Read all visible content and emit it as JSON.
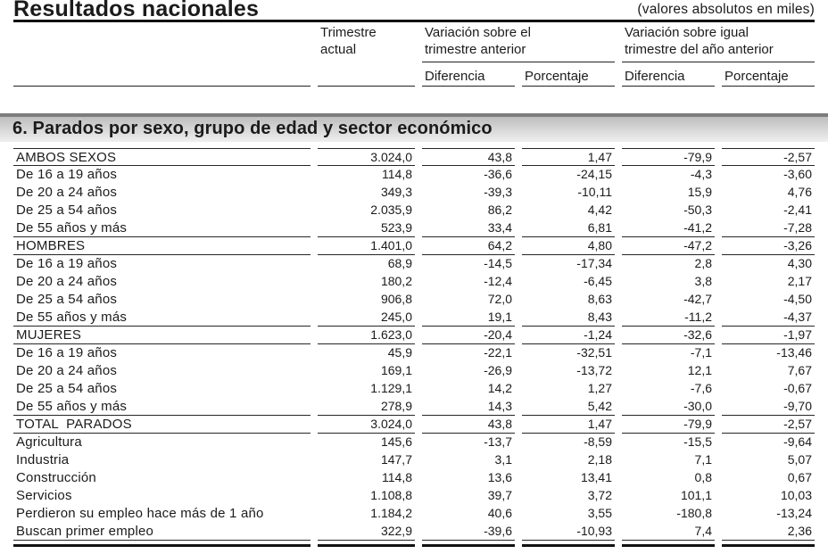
{
  "header": {
    "title": "Resultados nacionales",
    "units_note": "(valores absolutos en miles)"
  },
  "columns": {
    "current_quarter": {
      "line1": "Trimestre",
      "line2": "actual"
    },
    "vs_previous_quarter": {
      "line1": "Variación sobre el",
      "line2": "trimestre anterior",
      "difference": "Diferencia",
      "percentage": "Porcentaje"
    },
    "vs_year_ago_quarter": {
      "line1": "Variación sobre igual",
      "line2": "trimestre del año anterior",
      "difference": "Diferencia",
      "percentage": "Porcentaje"
    }
  },
  "section": {
    "title": "6. Parados por sexo, grupo de edad y sector económico"
  },
  "table": {
    "value_columns": [
      "Trimestre actual",
      "Diferencia trimestre anterior",
      "Porcentaje trimestre anterior",
      "Diferencia año anterior",
      "Porcentaje año anterior"
    ],
    "rows": [
      {
        "label": "AMBOS SEXOS",
        "values": [
          "3.024,0",
          "43,8",
          "1,47",
          "-79,9",
          "-2,57"
        ],
        "rule_below": true
      },
      {
        "label": "De 16 a 19 años",
        "values": [
          "114,8",
          "-36,6",
          "-24,15",
          "-4,3",
          "-3,60"
        ],
        "rule_below": false
      },
      {
        "label": "De 20 a 24 años",
        "values": [
          "349,3",
          "-39,3",
          "-10,11",
          "15,9",
          "4,76"
        ],
        "rule_below": false
      },
      {
        "label": "De 25 a 54 años",
        "values": [
          "2.035,9",
          "86,2",
          "4,42",
          "-50,3",
          "-2,41"
        ],
        "rule_below": false
      },
      {
        "label": "De 55 años y más",
        "values": [
          "523,9",
          "33,4",
          "6,81",
          "-41,2",
          "-7,28"
        ],
        "rule_below": true
      },
      {
        "label": "HOMBRES",
        "values": [
          "1.401,0",
          "64,2",
          "4,80",
          "-47,2",
          "-3,26"
        ],
        "rule_below": true
      },
      {
        "label": "De 16 a 19 años",
        "values": [
          "68,9",
          "-14,5",
          "-17,34",
          "2,8",
          "4,30"
        ],
        "rule_below": false
      },
      {
        "label": "De 20 a 24 años",
        "values": [
          "180,2",
          "-12,4",
          "-6,45",
          "3,8",
          "2,17"
        ],
        "rule_below": false
      },
      {
        "label": "De 25 a 54 años",
        "values": [
          "906,8",
          "72,0",
          "8,63",
          "-42,7",
          "-4,50"
        ],
        "rule_below": false
      },
      {
        "label": "De 55 años y más",
        "values": [
          "245,0",
          "19,1",
          "8,43",
          "-11,2",
          "-4,37"
        ],
        "rule_below": true
      },
      {
        "label": "MUJERES",
        "values": [
          "1.623,0",
          "-20,4",
          "-1,24",
          "-32,6",
          "-1,97"
        ],
        "rule_below": true
      },
      {
        "label": "De 16 a 19 años",
        "values": [
          "45,9",
          "-22,1",
          "-32,51",
          "-7,1",
          "-13,46"
        ],
        "rule_below": false
      },
      {
        "label": "De 20 a 24 años",
        "values": [
          "169,1",
          "-26,9",
          "-13,72",
          "12,1",
          "7,67"
        ],
        "rule_below": false
      },
      {
        "label": "De 25 a 54 años",
        "values": [
          "1.129,1",
          "14,2",
          "1,27",
          "-7,6",
          "-0,67"
        ],
        "rule_below": false
      },
      {
        "label": "De 55 años y más",
        "values": [
          "278,9",
          "14,3",
          "5,42",
          "-30,0",
          "-9,70"
        ],
        "rule_below": true
      },
      {
        "label": "TOTAL  PARADOS",
        "values": [
          "3.024,0",
          "43,8",
          "1,47",
          "-79,9",
          "-2,57"
        ],
        "rule_below": true
      },
      {
        "label": "Agricultura",
        "values": [
          "145,6",
          "-13,7",
          "-8,59",
          "-15,5",
          "-9,64"
        ],
        "rule_below": false
      },
      {
        "label": "Industria",
        "values": [
          "147,7",
          "3,1",
          "2,18",
          "7,1",
          "5,07"
        ],
        "rule_below": false
      },
      {
        "label": "Construcción",
        "values": [
          "114,8",
          "13,6",
          "13,41",
          "0,8",
          "0,67"
        ],
        "rule_below": false
      },
      {
        "label": "Servicios",
        "values": [
          "1.108,8",
          "39,7",
          "3,72",
          "101,1",
          "10,03"
        ],
        "rule_below": false
      },
      {
        "label": "Perdieron su empleo hace más de 1 año",
        "values": [
          "1.184,2",
          "40,6",
          "3,55",
          "-180,8",
          "-13,24"
        ],
        "rule_below": false
      },
      {
        "label": "Buscan primer empleo",
        "values": [
          "322,9",
          "-39,6",
          "-10,93",
          "7,4",
          "2,36"
        ],
        "rule_below": true
      }
    ]
  }
}
